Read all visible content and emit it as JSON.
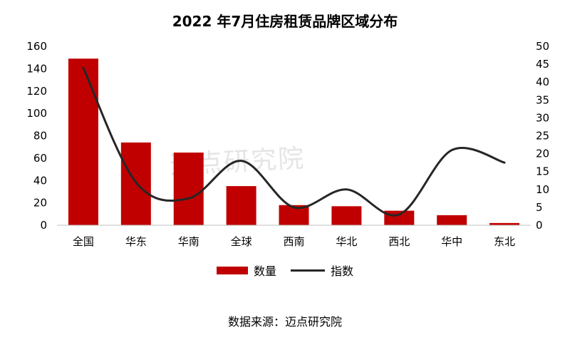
{
  "chart_data": {
    "type": "bar",
    "title": "2022 年7月住房租赁品牌区域分布",
    "categories": [
      "全国",
      "华东",
      "华南",
      "全球",
      "西南",
      "华北",
      "西北",
      "华中",
      "东北"
    ],
    "series": [
      {
        "name": "数量",
        "type": "bar",
        "axis": "left",
        "color": "#c00000",
        "values": [
          149,
          74,
          65,
          35,
          18,
          17,
          13,
          9,
          2
        ]
      },
      {
        "name": "指数",
        "type": "line",
        "axis": "right",
        "color": "#262626",
        "values": [
          44,
          12,
          7.5,
          18,
          5,
          10,
          3,
          21,
          17.5
        ]
      }
    ],
    "ylim": [
      0,
      160
    ],
    "y_ticks": [
      0,
      20,
      40,
      60,
      80,
      100,
      120,
      140,
      160
    ],
    "y2lim": [
      0,
      50
    ],
    "y2_ticks": [
      0,
      5,
      10,
      15,
      20,
      25,
      30,
      35,
      40,
      45,
      50
    ],
    "grid": false,
    "legend_position": "bottom"
  },
  "source_text": "数据来源：迈点研究院",
  "watermark_text": "迈点研究院"
}
